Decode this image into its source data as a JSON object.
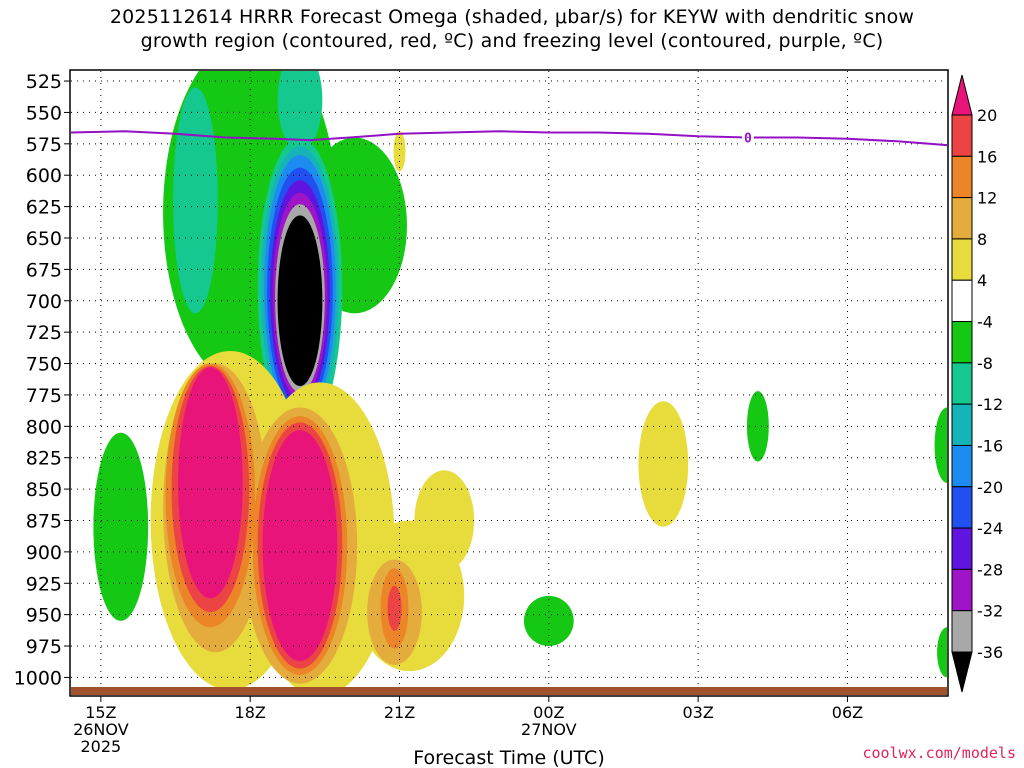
{
  "header": {
    "title_line1": "2025112614 HRRR Forecast Omega (shaded, μbar/s) for KEYW with dendritic snow",
    "title_line2": "growth region (contoured, red, ºC) and freezing level (contoured, purple, ºC)"
  },
  "footer": {
    "credit": "coolwx.com/models"
  },
  "chart_data": {
    "type": "heatmap",
    "title": "2025112614 HRRR Forecast Omega (shaded, μbar/s) for KEYW with dendritic snow growth region (contoured, red, ºC) and freezing level (contoured, purple, ºC)",
    "xlabel": "Forecast Time (UTC)",
    "ylabel": "",
    "y_axis": {
      "scale": "pressure",
      "invert": true,
      "ylim": [
        1014,
        517
      ],
      "ticks": [
        525,
        550,
        575,
        600,
        625,
        650,
        675,
        700,
        725,
        750,
        775,
        800,
        825,
        850,
        875,
        900,
        925,
        950,
        975,
        1000
      ]
    },
    "x_axis": {
      "xlim": [
        14.4,
        32.0
      ],
      "ticks": [
        {
          "x": 15,
          "labels": [
            "15Z",
            "26NOV",
            "2025"
          ]
        },
        {
          "x": 18,
          "labels": [
            "18Z"
          ]
        },
        {
          "x": 21,
          "labels": [
            "21Z"
          ]
        },
        {
          "x": 24,
          "labels": [
            "00Z",
            "27NOV"
          ]
        },
        {
          "x": 27,
          "labels": [
            "03Z"
          ]
        },
        {
          "x": 30,
          "labels": [
            "06Z"
          ]
        }
      ]
    },
    "grid": true,
    "colorbar": {
      "placement": "right",
      "labels": [
        20,
        16,
        12,
        8,
        4,
        -4,
        -8,
        -12,
        -16,
        -20,
        -24,
        -28,
        -32,
        -36
      ],
      "bins": [
        {
          "range": "> 20",
          "color": "#e8147a"
        },
        {
          "range": "16 to 20",
          "color": "#ec4444"
        },
        {
          "range": "12 to 16",
          "color": "#ec8428"
        },
        {
          "range": "8 to 12",
          "color": "#e4ac3c"
        },
        {
          "range": "4 to 8",
          "color": "#e8dc3c"
        },
        {
          "range": "-4 to 4",
          "color": "#ffffff"
        },
        {
          "range": "-8 to -4",
          "color": "#14c814"
        },
        {
          "range": "-12 to -8",
          "color": "#14c890"
        },
        {
          "range": "-16 to -12",
          "color": "#14b4b8"
        },
        {
          "range": "-20 to -16",
          "color": "#1c8cf0"
        },
        {
          "range": "-24 to -20",
          "color": "#2050f0"
        },
        {
          "range": "-28 to -24",
          "color": "#6014e0"
        },
        {
          "range": "-32 to -28",
          "color": "#a014c8"
        },
        {
          "range": "-36 to -32",
          "color": "#a8a8a8"
        },
        {
          "range": "< -36",
          "color": "#000000"
        }
      ]
    },
    "freezing_level": {
      "color": "#9410c4",
      "label": "0",
      "label_x": 28.0,
      "points": [
        [
          14.4,
          566
        ],
        [
          15.5,
          565
        ],
        [
          16.5,
          567
        ],
        [
          17.5,
          570
        ],
        [
          18.5,
          571
        ],
        [
          19.2,
          572
        ],
        [
          20.0,
          570
        ],
        [
          21.0,
          567
        ],
        [
          22.0,
          566
        ],
        [
          23.0,
          565
        ],
        [
          24.0,
          566
        ],
        [
          25.0,
          566
        ],
        [
          26.0,
          567
        ],
        [
          27.0,
          569
        ],
        [
          28.0,
          570
        ],
        [
          29.0,
          570
        ],
        [
          30.0,
          571
        ],
        [
          31.0,
          573
        ],
        [
          32.0,
          576
        ]
      ]
    },
    "surface_color": "#a0522d",
    "omega_regions": [
      {
        "level": -8,
        "color": "#14c814",
        "center": [
          15.4,
          880
        ],
        "rx": 0.55,
        "ry": 75
      },
      {
        "level": -8,
        "color": "#14c814",
        "center": [
          18.0,
          630
        ],
        "rx": 1.75,
        "ry": 140
      },
      {
        "level": -8,
        "color": "#14c814",
        "center": [
          20.1,
          640
        ],
        "rx": 1.05,
        "ry": 70
      },
      {
        "level": -8,
        "color": "#14c814",
        "center": [
          24.0,
          955
        ],
        "rx": 0.5,
        "ry": 20
      },
      {
        "level": -8,
        "color": "#14c814",
        "center": [
          28.2,
          800
        ],
        "rx": 0.22,
        "ry": 28
      },
      {
        "level": -8,
        "color": "#14c814",
        "center": [
          32.0,
          815
        ],
        "rx": 0.25,
        "ry": 30
      },
      {
        "level": -8,
        "color": "#14c814",
        "center": [
          32.0,
          980
        ],
        "rx": 0.2,
        "ry": 20
      },
      {
        "level": -12,
        "color": "#14c890",
        "center": [
          16.9,
          620
        ],
        "rx": 0.45,
        "ry": 90
      },
      {
        "level": -12,
        "color": "#14c890",
        "center": [
          19.0,
          540
        ],
        "rx": 0.45,
        "ry": 40
      },
      {
        "level": -12,
        "color": "#14c890",
        "center": [
          19.0,
          690
        ],
        "rx": 0.85,
        "ry": 120
      },
      {
        "level": -16,
        "color": "#14b4b8",
        "center": [
          19.0,
          690
        ],
        "rx": 0.78,
        "ry": 113
      },
      {
        "level": -20,
        "color": "#1c8cf0",
        "center": [
          19.0,
          690
        ],
        "rx": 0.72,
        "ry": 106
      },
      {
        "level": -24,
        "color": "#2050f0",
        "center": [
          19.0,
          692
        ],
        "rx": 0.66,
        "ry": 98
      },
      {
        "level": -28,
        "color": "#6014e0",
        "center": [
          19.0,
          694
        ],
        "rx": 0.6,
        "ry": 90
      },
      {
        "level": -32,
        "color": "#a014c8",
        "center": [
          19.0,
          696
        ],
        "rx": 0.55,
        "ry": 82
      },
      {
        "level": -36,
        "color": "#a8a8a8",
        "center": [
          19.0,
          698
        ],
        "rx": 0.5,
        "ry": 75
      },
      {
        "level": -40,
        "color": "#000000",
        "center": [
          19.0,
          700
        ],
        "rx": 0.45,
        "ry": 68
      },
      {
        "level": 4,
        "color": "#e8dc3c",
        "center": [
          17.6,
          875
        ],
        "rx": 1.6,
        "ry": 135
      },
      {
        "level": 4,
        "color": "#e8dc3c",
        "center": [
          19.4,
          890
        ],
        "rx": 1.5,
        "ry": 125
      },
      {
        "level": 4,
        "color": "#e8dc3c",
        "center": [
          21.2,
          935
        ],
        "rx": 1.1,
        "ry": 60
      },
      {
        "level": 4,
        "color": "#e8dc3c",
        "center": [
          21.9,
          875
        ],
        "rx": 0.6,
        "ry": 40
      },
      {
        "level": 4,
        "color": "#e8dc3c",
        "center": [
          26.3,
          830
        ],
        "rx": 0.5,
        "ry": 50
      },
      {
        "level": 4,
        "color": "#e8dc3c",
        "center": [
          21.0,
          581
        ],
        "rx": 0.12,
        "ry": 16
      },
      {
        "level": 8,
        "color": "#e4ac3c",
        "center": [
          17.3,
          865
        ],
        "rx": 1.05,
        "ry": 115
      },
      {
        "level": 8,
        "color": "#e4ac3c",
        "center": [
          19.0,
          895
        ],
        "rx": 1.15,
        "ry": 110
      },
      {
        "level": 8,
        "color": "#e4ac3c",
        "center": [
          20.9,
          948
        ],
        "rx": 0.55,
        "ry": 42
      },
      {
        "level": 12,
        "color": "#ec8428",
        "center": [
          17.2,
          855
        ],
        "rx": 0.9,
        "ry": 105
      },
      {
        "level": 12,
        "color": "#ec8428",
        "center": [
          19.0,
          895
        ],
        "rx": 0.95,
        "ry": 103
      },
      {
        "level": 12,
        "color": "#ec8428",
        "center": [
          20.9,
          945
        ],
        "rx": 0.28,
        "ry": 32
      },
      {
        "level": 16,
        "color": "#ec4444",
        "center": [
          17.2,
          850
        ],
        "rx": 0.78,
        "ry": 98
      },
      {
        "level": 16,
        "color": "#ec4444",
        "center": [
          19.0,
          895
        ],
        "rx": 0.85,
        "ry": 98
      },
      {
        "level": 16,
        "color": "#ec4444",
        "center": [
          20.9,
          945
        ],
        "rx": 0.14,
        "ry": 18
      },
      {
        "level": 20,
        "color": "#e8147a",
        "center": [
          17.2,
          845
        ],
        "rx": 0.65,
        "ry": 92
      },
      {
        "level": 20,
        "color": "#e8147a",
        "center": [
          19.0,
          895
        ],
        "rx": 0.75,
        "ry": 92
      }
    ]
  }
}
